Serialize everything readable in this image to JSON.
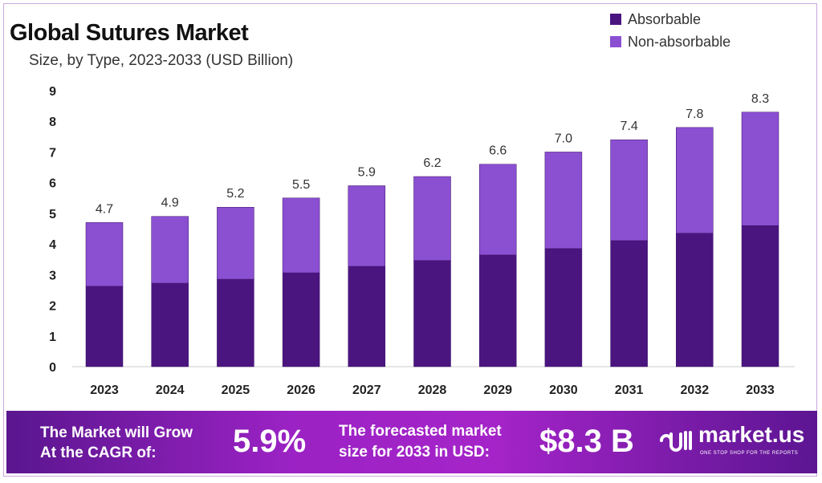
{
  "chart_data": {
    "type": "bar",
    "stacked": true,
    "title": "Global Sutures Market",
    "subtitle": "Size, by Type, 2023-2033 (USD Billion)",
    "categories": [
      "2023",
      "2024",
      "2025",
      "2026",
      "2027",
      "2028",
      "2029",
      "2030",
      "2031",
      "2032",
      "2033"
    ],
    "series": [
      {
        "name": "Absorbable",
        "color": "#4b1580",
        "values": [
          2.62,
          2.72,
          2.85,
          3.06,
          3.27,
          3.46,
          3.64,
          3.85,
          4.11,
          4.35,
          4.6
        ]
      },
      {
        "name": "Non-absorbable",
        "color": "#8b4fd2",
        "values": [
          2.08,
          2.18,
          2.35,
          2.44,
          2.63,
          2.74,
          2.96,
          3.15,
          3.29,
          3.45,
          3.7
        ]
      }
    ],
    "totals": [
      "4.7",
      "4.9",
      "5.2",
      "5.5",
      "5.9",
      "6.2",
      "6.6",
      "7.0",
      "7.4",
      "7.8",
      "8.3"
    ],
    "ylim": [
      0,
      9
    ],
    "yticks": [
      "0",
      "1",
      "2",
      "3",
      "4",
      "5",
      "6",
      "7",
      "8",
      "9"
    ],
    "grid": false,
    "legend_placement": "top-right"
  },
  "footer": {
    "cagr_text_line1": "The Market will Grow",
    "cagr_text_line2": "At the CAGR of:",
    "cagr_value": "5.9%",
    "forecast_text_line1": "The forecasted market",
    "forecast_text_line2": "size for 2033 in USD:",
    "forecast_value": "$8.3 B",
    "brand": "market.us",
    "brand_tagline": "ONE STOP SHOP FOR THE REPORTS"
  }
}
